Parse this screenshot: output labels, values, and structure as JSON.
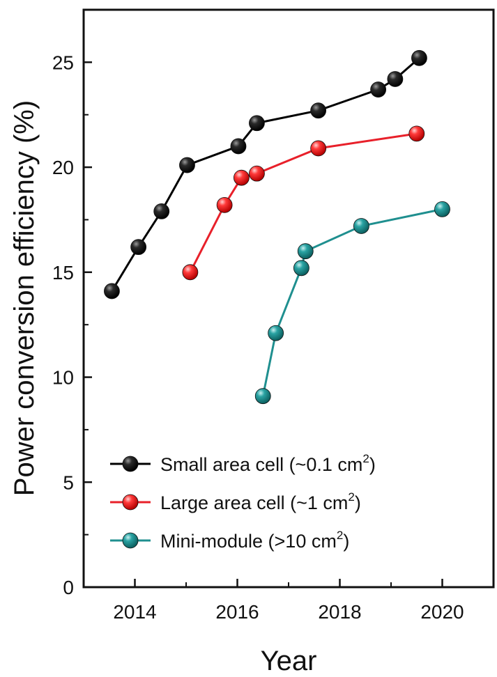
{
  "chart_data": {
    "type": "line",
    "xlabel": "Year",
    "ylabel": "Power conversion efficiency (%)",
    "xlim": [
      2013.0,
      2021.0
    ],
    "ylim": [
      0,
      27.5
    ],
    "x_ticks": [
      2014,
      2016,
      2018,
      2020
    ],
    "y_ticks": [
      0,
      5,
      10,
      15,
      20,
      25
    ],
    "x_tick_labels": [
      "2014",
      "2016",
      "2018",
      "2020"
    ],
    "y_tick_labels": [
      "0",
      "5",
      "10",
      "15",
      "20",
      "25"
    ],
    "grid": false,
    "legend_position": "bottom-left",
    "series": [
      {
        "name": "Small area cell (~0.1 cm",
        "name_sup": "2",
        "name_end": ")",
        "color": "#000000",
        "x": [
          2013.55,
          2014.07,
          2014.52,
          2015.02,
          2016.02,
          2016.38,
          2017.58,
          2018.75,
          2019.08,
          2019.55
        ],
        "y": [
          14.1,
          16.2,
          17.9,
          20.1,
          21.0,
          22.1,
          22.7,
          23.7,
          24.2,
          25.2
        ]
      },
      {
        "name": "Large area cell (~1 cm",
        "name_sup": "2",
        "name_end": ")",
        "color": "#e8202a",
        "x": [
          2015.08,
          2015.75,
          2016.08,
          2016.38,
          2017.58,
          2019.5
        ],
        "y": [
          15.0,
          18.2,
          19.5,
          19.7,
          20.9,
          21.6
        ]
      },
      {
        "name": "Mini-module (>10 cm",
        "name_sup": "2",
        "name_end": ")",
        "color": "#1f8f8f",
        "x": [
          2016.5,
          2016.75,
          2017.25,
          2017.33,
          2018.42,
          2020.0
        ],
        "y": [
          9.1,
          12.1,
          15.2,
          16.0,
          17.2,
          18.0
        ]
      }
    ]
  }
}
